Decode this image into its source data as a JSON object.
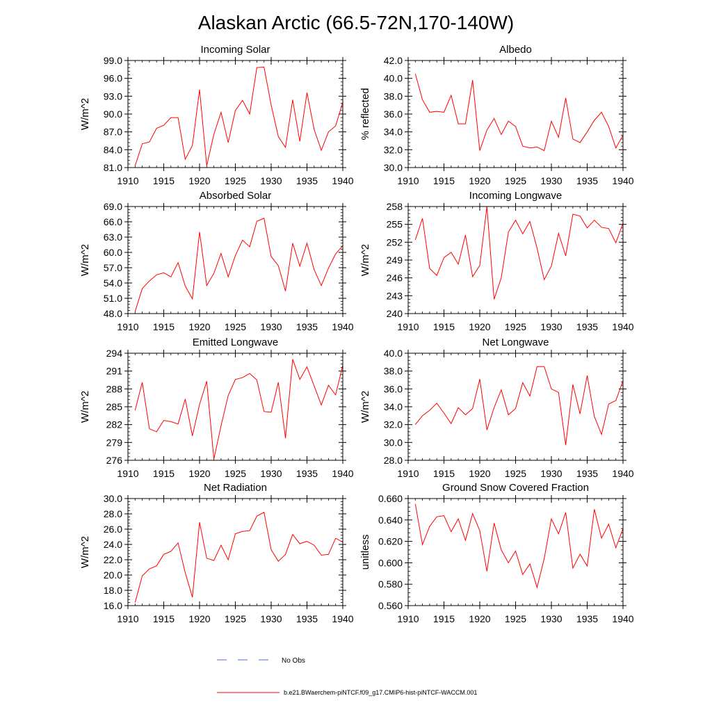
{
  "page_title": "Alaskan Arctic (66.5-72N,170-140W)",
  "legend": {
    "obs_label": "No Obs",
    "model_label": "b.e21.BWaerchem-piNTCF.f09_g17.CMIP6-hist-piNTCF-WACCM.001"
  },
  "colors": {
    "model": "#ff0000",
    "obs": "#4a6fd6",
    "axis": "#000000"
  },
  "chart_data": [
    {
      "type": "line",
      "title": "Incoming Solar",
      "ylabel": "W/m^2",
      "xlim": [
        1910,
        1940
      ],
      "ylim": [
        81,
        99
      ],
      "xticks": [
        1910,
        1915,
        1920,
        1925,
        1930,
        1935,
        1940
      ],
      "xtick_labels": [
        "1910",
        "1915",
        "1920",
        "1925",
        "1930",
        "1935",
        "1940"
      ],
      "yticks": [
        81,
        84,
        87,
        90,
        93,
        96,
        99
      ],
      "ytick_labels": [
        "81.0",
        "84.0",
        "87.0",
        "90.0",
        "93.0",
        "96.0",
        "99.0"
      ],
      "x": [
        1911,
        1912,
        1913,
        1914,
        1915,
        1916,
        1917,
        1918,
        1919,
        1920,
        1921,
        1922,
        1923,
        1924,
        1925,
        1926,
        1927,
        1928,
        1929,
        1930,
        1931,
        1932,
        1933,
        1934,
        1935,
        1936,
        1937,
        1938,
        1939,
        1940
      ],
      "series": [
        {
          "name": "b.e21.BWaerchem-piNTCF.f09_g17.CMIP6-hist-piNTCF-WACCM.001",
          "values": [
            81.3,
            85.0,
            85.3,
            87.6,
            88.1,
            89.4,
            89.4,
            82.4,
            84.7,
            94.1,
            81.3,
            86.6,
            90.3,
            85.2,
            90.6,
            92.3,
            90.0,
            97.8,
            97.9,
            91.5,
            86.2,
            84.4,
            92.4,
            85.4,
            93.6,
            87.4,
            83.9,
            87.0,
            88.0,
            92.0
          ]
        }
      ]
    },
    {
      "type": "line",
      "title": "Albedo",
      "ylabel": "% reflected",
      "xlim": [
        1910,
        1940
      ],
      "ylim": [
        30,
        42
      ],
      "xticks": [
        1910,
        1915,
        1920,
        1925,
        1930,
        1935,
        1940
      ],
      "xtick_labels": [
        "1910",
        "1915",
        "1920",
        "1925",
        "1930",
        "1935",
        "1940"
      ],
      "yticks": [
        30,
        32,
        34,
        36,
        38,
        40,
        42
      ],
      "ytick_labels": [
        "30.0",
        "32.0",
        "34.0",
        "36.0",
        "38.0",
        "40.0",
        "42.0"
      ],
      "x": [
        1911,
        1912,
        1913,
        1914,
        1915,
        1916,
        1917,
        1918,
        1919,
        1920,
        1921,
        1922,
        1923,
        1924,
        1925,
        1926,
        1927,
        1928,
        1929,
        1930,
        1931,
        1932,
        1933,
        1934,
        1935,
        1936,
        1937,
        1938,
        1939,
        1940
      ],
      "series": [
        {
          "name": "b.e21.BWaerchem-piNTCF.f09_g17.CMIP6-hist-piNTCF-WACCM.001",
          "values": [
            40.5,
            37.6,
            36.2,
            36.3,
            36.2,
            38.1,
            34.9,
            34.9,
            39.8,
            31.9,
            34.2,
            35.5,
            33.7,
            35.2,
            34.6,
            32.4,
            32.2,
            32.3,
            31.9,
            35.2,
            33.4,
            37.8,
            33.2,
            32.8,
            34.0,
            35.3,
            36.2,
            34.6,
            32.2,
            33.6
          ]
        }
      ]
    },
    {
      "type": "line",
      "title": "Absorbed Solar",
      "ylabel": "W/m^2",
      "xlim": [
        1910,
        1940
      ],
      "ylim": [
        48,
        69
      ],
      "xticks": [
        1910,
        1915,
        1920,
        1925,
        1930,
        1935,
        1940
      ],
      "xtick_labels": [
        "1910",
        "1915",
        "1920",
        "1925",
        "1930",
        "1935",
        "1940"
      ],
      "yticks": [
        48,
        51,
        54,
        57,
        60,
        63,
        66,
        69
      ],
      "ytick_labels": [
        "48.0",
        "51.0",
        "54.0",
        "57.0",
        "60.0",
        "63.0",
        "66.0",
        "69.0"
      ],
      "x": [
        1911,
        1912,
        1913,
        1914,
        1915,
        1916,
        1917,
        1918,
        1919,
        1920,
        1921,
        1922,
        1923,
        1924,
        1925,
        1926,
        1927,
        1928,
        1929,
        1930,
        1931,
        1932,
        1933,
        1934,
        1935,
        1936,
        1937,
        1938,
        1939,
        1940
      ],
      "series": [
        {
          "name": "b.e21.BWaerchem-piNTCF.f09_g17.CMIP6-hist-piNTCF-WACCM.001",
          "values": [
            48.4,
            52.9,
            54.4,
            55.6,
            56.0,
            55.2,
            58.0,
            53.4,
            50.9,
            64.0,
            53.5,
            55.9,
            59.8,
            55.2,
            59.4,
            62.4,
            61.1,
            66.1,
            66.7,
            59.2,
            57.4,
            52.4,
            61.8,
            57.3,
            61.8,
            56.6,
            53.5,
            56.9,
            59.7,
            61.3
          ]
        }
      ]
    },
    {
      "type": "line",
      "title": "Incoming Longwave",
      "ylabel": "W/m^2",
      "xlim": [
        1910,
        1940
      ],
      "ylim": [
        240,
        258
      ],
      "xticks": [
        1910,
        1915,
        1920,
        1925,
        1930,
        1935,
        1940
      ],
      "xtick_labels": [
        "1910",
        "1915",
        "1920",
        "1925",
        "1930",
        "1935",
        "1940"
      ],
      "yticks": [
        240,
        243,
        246,
        249,
        252,
        255,
        258
      ],
      "ytick_labels": [
        "240",
        "243",
        "246",
        "249",
        "252",
        "255",
        "258"
      ],
      "x": [
        1911,
        1912,
        1913,
        1914,
        1915,
        1916,
        1917,
        1918,
        1919,
        1920,
        1921,
        1922,
        1923,
        1924,
        1925,
        1926,
        1927,
        1928,
        1929,
        1930,
        1931,
        1932,
        1933,
        1934,
        1935,
        1936,
        1937,
        1938,
        1939,
        1940
      ],
      "series": [
        {
          "name": "b.e21.BWaerchem-piNTCF.f09_g17.CMIP6-hist-piNTCF-WACCM.001",
          "values": [
            252.4,
            256.0,
            247.6,
            246.4,
            249.4,
            250.3,
            248.3,
            253.2,
            246.2,
            248.1,
            258.0,
            242.4,
            246.0,
            253.7,
            255.7,
            253.4,
            255.5,
            251.0,
            245.7,
            248.0,
            253.5,
            249.7,
            256.7,
            256.4,
            254.4,
            255.7,
            254.5,
            254.3,
            251.9,
            255.2
          ]
        }
      ]
    },
    {
      "type": "line",
      "title": "Emitted Longwave",
      "ylabel": "W/m^2",
      "xlim": [
        1910,
        1940
      ],
      "ylim": [
        276,
        294
      ],
      "xticks": [
        1910,
        1915,
        1920,
        1925,
        1930,
        1935,
        1940
      ],
      "xtick_labels": [
        "1910",
        "1915",
        "1920",
        "1925",
        "1930",
        "1935",
        "1940"
      ],
      "yticks": [
        276,
        279,
        282,
        285,
        288,
        291,
        294
      ],
      "ytick_labels": [
        "276",
        "279",
        "282",
        "285",
        "288",
        "291",
        "294"
      ],
      "x": [
        1911,
        1912,
        1913,
        1914,
        1915,
        1916,
        1917,
        1918,
        1919,
        1920,
        1921,
        1922,
        1923,
        1924,
        1925,
        1926,
        1927,
        1928,
        1929,
        1930,
        1931,
        1932,
        1933,
        1934,
        1935,
        1936,
        1937,
        1938,
        1939,
        1940
      ],
      "series": [
        {
          "name": "b.e21.BWaerchem-piNTCF.f09_g17.CMIP6-hist-piNTCF-WACCM.001",
          "values": [
            284.4,
            289.1,
            281.3,
            280.8,
            282.7,
            282.5,
            282.1,
            286.3,
            280.1,
            285.4,
            289.3,
            276.2,
            281.8,
            286.9,
            289.6,
            289.9,
            290.6,
            289.5,
            284.2,
            284.1,
            289.1,
            279.7,
            293.0,
            289.6,
            291.7,
            288.5,
            285.3,
            288.6,
            287.0,
            292.0
          ]
        }
      ]
    },
    {
      "type": "line",
      "title": "Net Longwave",
      "ylabel": "W/m^2",
      "xlim": [
        1910,
        1940
      ],
      "ylim": [
        28,
        40
      ],
      "xticks": [
        1910,
        1915,
        1920,
        1925,
        1930,
        1935,
        1940
      ],
      "xtick_labels": [
        "1910",
        "1915",
        "1920",
        "1925",
        "1930",
        "1935",
        "1940"
      ],
      "yticks": [
        28,
        30,
        32,
        34,
        36,
        38,
        40
      ],
      "ytick_labels": [
        "28.0",
        "30.0",
        "32.0",
        "34.0",
        "36.0",
        "38.0",
        "40.0"
      ],
      "x": [
        1911,
        1912,
        1913,
        1914,
        1915,
        1916,
        1917,
        1918,
        1919,
        1920,
        1921,
        1922,
        1923,
        1924,
        1925,
        1926,
        1927,
        1928,
        1929,
        1930,
        1931,
        1932,
        1933,
        1934,
        1935,
        1936,
        1937,
        1938,
        1939,
        1940
      ],
      "series": [
        {
          "name": "b.e21.BWaerchem-piNTCF.f09_g17.CMIP6-hist-piNTCF-WACCM.001",
          "values": [
            32.0,
            33.0,
            33.6,
            34.4,
            33.3,
            32.1,
            33.9,
            33.1,
            33.8,
            37.1,
            31.4,
            33.9,
            35.9,
            33.1,
            33.8,
            36.7,
            35.2,
            38.5,
            38.5,
            36.0,
            35.6,
            29.7,
            36.5,
            33.2,
            37.5,
            32.9,
            30.9,
            34.3,
            34.7,
            36.9
          ]
        }
      ]
    },
    {
      "type": "line",
      "title": "Net Radiation",
      "ylabel": "W/m^2",
      "xlim": [
        1910,
        1940
      ],
      "ylim": [
        16,
        30
      ],
      "xticks": [
        1910,
        1915,
        1920,
        1925,
        1930,
        1935,
        1940
      ],
      "xtick_labels": [
        "1910",
        "1915",
        "1920",
        "1925",
        "1930",
        "1935",
        "1940"
      ],
      "yticks": [
        16,
        18,
        20,
        22,
        24,
        26,
        28,
        30
      ],
      "ytick_labels": [
        "16.0",
        "18.0",
        "20.0",
        "22.0",
        "24.0",
        "26.0",
        "28.0",
        "30.0"
      ],
      "x": [
        1911,
        1912,
        1913,
        1914,
        1915,
        1916,
        1917,
        1918,
        1919,
        1920,
        1921,
        1922,
        1923,
        1924,
        1925,
        1926,
        1927,
        1928,
        1929,
        1930,
        1931,
        1932,
        1933,
        1934,
        1935,
        1936,
        1937,
        1938,
        1939,
        1940
      ],
      "series": [
        {
          "name": "b.e21.BWaerchem-piNTCF.f09_g17.CMIP6-hist-piNTCF-WACCM.001",
          "values": [
            16.4,
            19.9,
            20.8,
            21.2,
            22.7,
            23.1,
            24.2,
            20.3,
            17.1,
            26.9,
            22.2,
            21.9,
            23.9,
            22.0,
            25.4,
            25.7,
            25.8,
            27.7,
            28.2,
            23.3,
            21.8,
            22.7,
            25.3,
            24.1,
            24.4,
            23.9,
            22.6,
            22.7,
            24.8,
            24.3
          ]
        }
      ]
    },
    {
      "type": "line",
      "title": "Ground Snow Covered Fraction",
      "ylabel": "unitless",
      "xlim": [
        1910,
        1940
      ],
      "ylim": [
        0.56,
        0.66
      ],
      "xticks": [
        1910,
        1915,
        1920,
        1925,
        1930,
        1935,
        1940
      ],
      "xtick_labels": [
        "1910",
        "1915",
        "1920",
        "1925",
        "1930",
        "1935",
        "1940"
      ],
      "yticks": [
        0.56,
        0.58,
        0.6,
        0.62,
        0.64,
        0.66
      ],
      "ytick_labels": [
        "0.560",
        "0.580",
        "0.600",
        "0.620",
        "0.640",
        "0.660"
      ],
      "x": [
        1911,
        1912,
        1913,
        1914,
        1915,
        1916,
        1917,
        1918,
        1919,
        1920,
        1921,
        1922,
        1923,
        1924,
        1925,
        1926,
        1927,
        1928,
        1929,
        1930,
        1931,
        1932,
        1933,
        1934,
        1935,
        1936,
        1937,
        1938,
        1939,
        1940
      ],
      "series": [
        {
          "name": "b.e21.BWaerchem-piNTCF.f09_g17.CMIP6-hist-piNTCF-WACCM.001",
          "values": [
            0.655,
            0.617,
            0.634,
            0.643,
            0.644,
            0.629,
            0.641,
            0.621,
            0.646,
            0.63,
            0.592,
            0.637,
            0.612,
            0.6,
            0.611,
            0.589,
            0.599,
            0.577,
            0.604,
            0.641,
            0.627,
            0.647,
            0.595,
            0.608,
            0.597,
            0.65,
            0.623,
            0.636,
            0.614,
            0.632
          ]
        }
      ]
    }
  ]
}
